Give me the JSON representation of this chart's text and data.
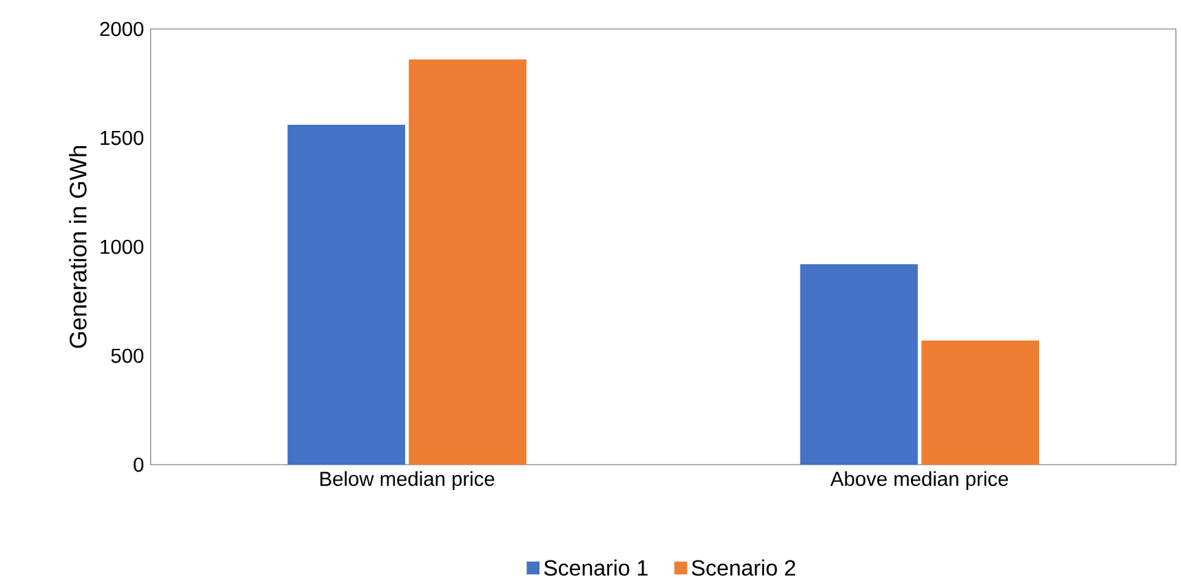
{
  "chart_data": {
    "type": "bar",
    "ylabel": "Generation in GWh",
    "categories": [
      "Below median price",
      "Above median price"
    ],
    "series": [
      {
        "name": "Scenario 1",
        "color": "#4472c4",
        "values": [
          1560,
          920
        ]
      },
      {
        "name": "Scenario 2",
        "color": "#ed7d31",
        "values": [
          1860,
          570
        ]
      }
    ],
    "ylim": [
      0,
      2000
    ],
    "yticks": [
      0,
      500,
      1000,
      1500,
      2000
    ],
    "grid": false,
    "legend": "bottom"
  }
}
